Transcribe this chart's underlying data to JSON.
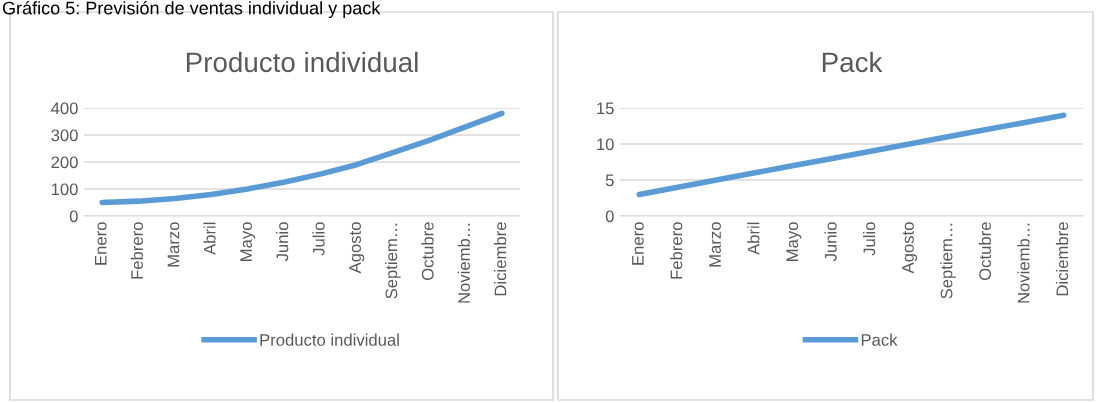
{
  "chart_data": [
    {
      "type": "line",
      "title": "Producto individual",
      "annotations": [
        "Gráfico 5: Previsión de ventas individual y pack"
      ],
      "categories": [
        "Enero",
        "Febrero",
        "Marzo",
        "Abril",
        "Mayo",
        "Junio",
        "Julio",
        "Agosto",
        "Septiem…",
        "Octubre",
        "Noviemb…",
        "Diciembre"
      ],
      "series": [
        {
          "name": "Producto individual",
          "color": "#5b9bd5",
          "values": [
            50,
            55,
            65,
            80,
            100,
            125,
            155,
            190,
            235,
            280,
            330,
            380
          ]
        }
      ],
      "ylim": [
        0,
        400
      ],
      "yticks": [
        0,
        100,
        200,
        300,
        400
      ],
      "grid": "y",
      "legend": "bottom",
      "marker": "none"
    },
    {
      "type": "line",
      "title": "Pack",
      "categories": [
        "Enero",
        "Febrero",
        "Marzo",
        "Abril",
        "Mayo",
        "Junio",
        "Julio",
        "Agosto",
        "Septiem…",
        "Octubre",
        "Noviemb…",
        "Diciembre"
      ],
      "series": [
        {
          "name": "Pack",
          "color": "#5b9bd5",
          "values": [
            3,
            4,
            5,
            6,
            7,
            8,
            9,
            10,
            11,
            12,
            13,
            14
          ]
        }
      ],
      "ylim": [
        0,
        15
      ],
      "yticks": [
        0,
        5,
        10,
        15
      ],
      "grid": "y",
      "legend": "bottom",
      "marker": "none"
    }
  ]
}
